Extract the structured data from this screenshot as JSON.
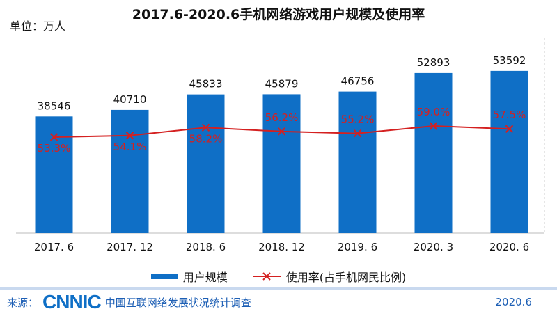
{
  "chart_data": {
    "type": "bar+line",
    "title": "2017.6-2020.6手机网络游戏用户规模及使用率",
    "unit_label": "单位：万人",
    "categories": [
      "2017. 6",
      "2017. 12",
      "2018. 6",
      "2018. 12",
      "2019. 6",
      "2020. 3",
      "2020. 6"
    ],
    "series": [
      {
        "name": "用户规模",
        "type": "bar",
        "color": "#0f6fc6",
        "values": [
          38546,
          40710,
          45833,
          45879,
          46756,
          52893,
          53592
        ]
      },
      {
        "name": "使用率(占手机网民比例)",
        "type": "line",
        "color": "#d42020",
        "values": [
          53.3,
          54.1,
          58.2,
          56.2,
          55.2,
          59.0,
          57.5
        ],
        "labels": [
          "53.3%",
          "54.1%",
          "58.2%",
          "56.2%",
          "55.2%",
          "59.0%",
          "57.5%"
        ]
      }
    ],
    "ylim": [
      0,
      60000
    ],
    "grid": false,
    "legend": "bottom"
  },
  "footer": {
    "source_label": "来源：",
    "logo": "CNNIC",
    "source_text": "中国互联网络发展状况统计调查",
    "date": "2020.6"
  }
}
